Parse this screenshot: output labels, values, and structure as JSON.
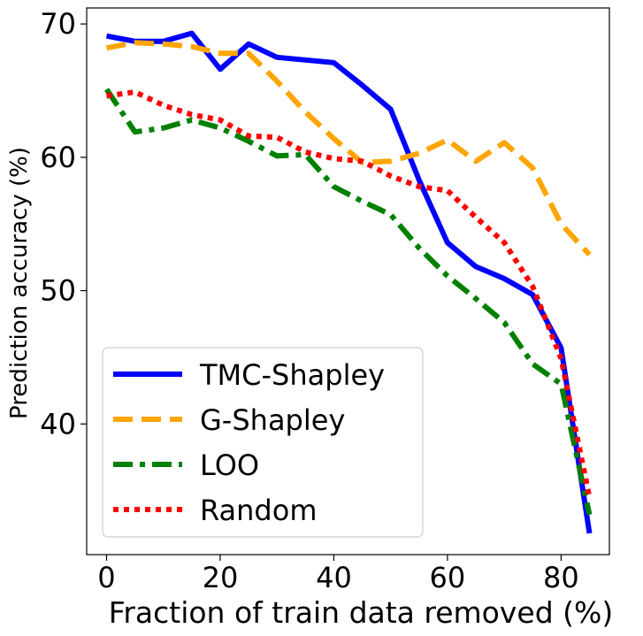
{
  "chart_data": {
    "type": "line",
    "xlabel": "Fraction of train data removed (%)",
    "ylabel": "Prediction accuracy (%)",
    "xlim": [
      -3.5,
      88.5
    ],
    "ylim": [
      30.2,
      71.2
    ],
    "xticks": [
      0,
      20,
      40,
      60,
      80
    ],
    "yticks": [
      40,
      50,
      60,
      70
    ],
    "legend_position": "lower-left",
    "grid": false,
    "series": [
      {
        "name": "TMC-Shapley",
        "color": "#0000ff",
        "style": "solid",
        "x": [
          0,
          5,
          10,
          15,
          20,
          25,
          30,
          35,
          40,
          45,
          50,
          55,
          60,
          65,
          70,
          75,
          80,
          85
        ],
        "y": [
          69.1,
          68.7,
          68.7,
          69.3,
          66.6,
          68.5,
          67.5,
          67.3,
          67.1,
          65.4,
          63.6,
          58.3,
          53.6,
          51.8,
          50.9,
          49.7,
          45.7,
          31.8
        ]
      },
      {
        "name": "G-Shapley",
        "color": "#ffa500",
        "style": "dashed",
        "x": [
          0,
          5,
          10,
          15,
          20,
          25,
          30,
          35,
          40,
          45,
          50,
          55,
          60,
          65,
          70,
          75,
          80,
          85
        ],
        "y": [
          68.2,
          68.6,
          68.5,
          68.3,
          67.8,
          67.8,
          65.7,
          63.4,
          61.4,
          59.6,
          59.7,
          60.3,
          61.3,
          59.7,
          61.1,
          59.2,
          55.0,
          52.7
        ]
      },
      {
        "name": "LOO",
        "color": "#008000",
        "style": "dashdot",
        "x": [
          0,
          5,
          10,
          15,
          20,
          25,
          30,
          35,
          40,
          45,
          50,
          55,
          60,
          65,
          70,
          75,
          80,
          85
        ],
        "y": [
          65.1,
          61.9,
          62.2,
          62.8,
          62.2,
          61.2,
          60.1,
          60.2,
          57.8,
          56.7,
          55.7,
          53.2,
          51.1,
          49.4,
          47.6,
          44.5,
          43.0,
          33.2
        ]
      },
      {
        "name": "Random",
        "color": "#ff0000",
        "style": "dotted",
        "x": [
          0,
          5,
          10,
          15,
          20,
          25,
          30,
          35,
          40,
          45,
          50,
          55,
          60,
          65,
          70,
          75,
          80,
          85
        ],
        "y": [
          64.6,
          64.9,
          63.9,
          63.2,
          62.8,
          61.6,
          61.5,
          60.4,
          59.9,
          59.7,
          58.6,
          57.8,
          57.5,
          55.5,
          53.6,
          50.3,
          44.9,
          34.5
        ]
      }
    ]
  }
}
